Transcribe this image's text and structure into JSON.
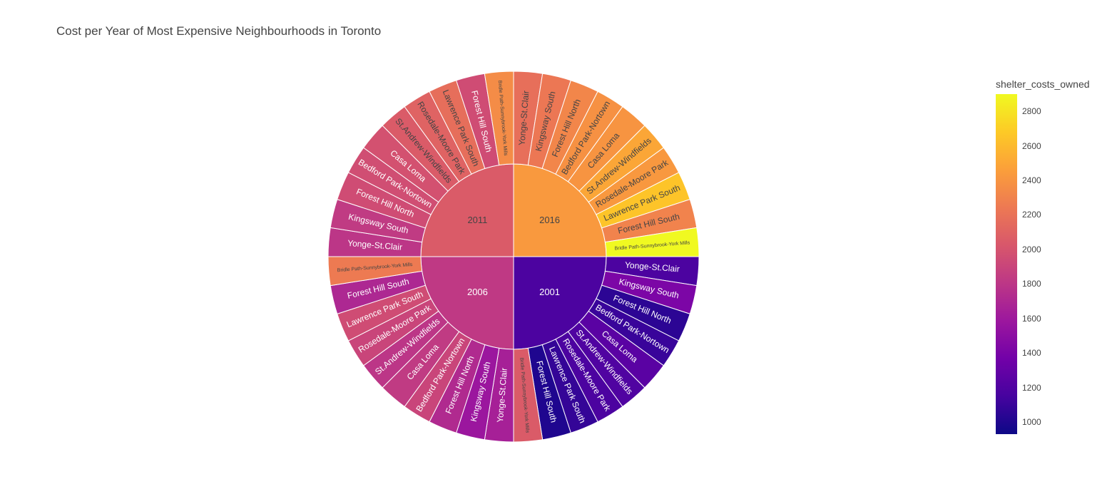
{
  "chart_data": {
    "type": "sunburst",
    "title": "Cost per Year of Most Expensive Neighbourhoods in Toronto",
    "color_variable": "shelter_costs_owned",
    "colorscale": [
      "#0d0887",
      "#46039f",
      "#7201a8",
      "#9c179e",
      "#bd3786",
      "#d8576b",
      "#ed7953",
      "#fb9f3a",
      "#fdca26",
      "#f0f921"
    ],
    "colorbar": {
      "min": 930,
      "max": 2900,
      "ticks": [
        1000,
        1200,
        1400,
        1600,
        1800,
        2000,
        2200,
        2400,
        2600,
        2800
      ]
    },
    "years": [
      {
        "label": "2001",
        "value": 1180,
        "children": [
          {
            "label": "Yonge-St.Clair",
            "value": 1180
          },
          {
            "label": "Kingsway South",
            "value": 1420
          },
          {
            "label": "Forest Hill North",
            "value": 1050
          },
          {
            "label": "Bedford Park-Nortown",
            "value": 1100
          },
          {
            "label": "Casa Loma",
            "value": 1250
          },
          {
            "label": "St.Andrew-Windfields",
            "value": 1200
          },
          {
            "label": "Rosedale-Moore Park",
            "value": 1180
          },
          {
            "label": "Lawrence Park South",
            "value": 1080
          },
          {
            "label": "Forest Hill South",
            "value": 1000
          },
          {
            "label": "Bridle Path-Sunnybrook-York Mills",
            "value": 2050
          }
        ]
      },
      {
        "label": "2006",
        "value": 1820,
        "children": [
          {
            "label": "Yonge-St.Clair",
            "value": 1650
          },
          {
            "label": "Kingsway South",
            "value": 1580
          },
          {
            "label": "Forest Hill North",
            "value": 1720
          },
          {
            "label": "Bedford Park-Nortown",
            "value": 1900
          },
          {
            "label": "Casa Loma",
            "value": 1830
          },
          {
            "label": "St.Andrew-Windfields",
            "value": 1800
          },
          {
            "label": "Rosedale-Moore Park",
            "value": 1900
          },
          {
            "label": "Lawrence Park South",
            "value": 1950
          },
          {
            "label": "Forest Hill South",
            "value": 1700
          },
          {
            "label": "Bridle Path-Sunnybrook-York Mills",
            "value": 2250
          }
        ]
      },
      {
        "label": "2011",
        "value": 2050,
        "children": [
          {
            "label": "Yonge-St.Clair",
            "value": 1800
          },
          {
            "label": "Kingsway South",
            "value": 1830
          },
          {
            "label": "Forest Hill North",
            "value": 1950
          },
          {
            "label": "Bedford Park-Nortown",
            "value": 1960
          },
          {
            "label": "Casa Loma",
            "value": 1980
          },
          {
            "label": "St.Andrew-Windfields",
            "value": 2050
          },
          {
            "label": "Rosedale-Moore Park",
            "value": 2100
          },
          {
            "label": "Lawrence Park South",
            "value": 2170
          },
          {
            "label": "Forest Hill South",
            "value": 1950
          },
          {
            "label": "Bridle Path-Sunnybrook-York Mills",
            "value": 2350
          }
        ]
      },
      {
        "label": "2016",
        "value": 2430,
        "children": [
          {
            "label": "Yonge-St.Clair",
            "value": 2180
          },
          {
            "label": "Kingsway South",
            "value": 2230
          },
          {
            "label": "Forest Hill North",
            "value": 2320
          },
          {
            "label": "Bedford Park-Nortown",
            "value": 2380
          },
          {
            "label": "Casa Loma",
            "value": 2400
          },
          {
            "label": "St.Andrew-Windfields",
            "value": 2500
          },
          {
            "label": "Rosedale-Moore Park",
            "value": 2420
          },
          {
            "label": "Lawrence Park South",
            "value": 2650
          },
          {
            "label": "Forest Hill South",
            "value": 2300
          },
          {
            "label": "Bridle Path-Sunnybrook-York Mills",
            "value": 2900
          }
        ]
      }
    ]
  }
}
